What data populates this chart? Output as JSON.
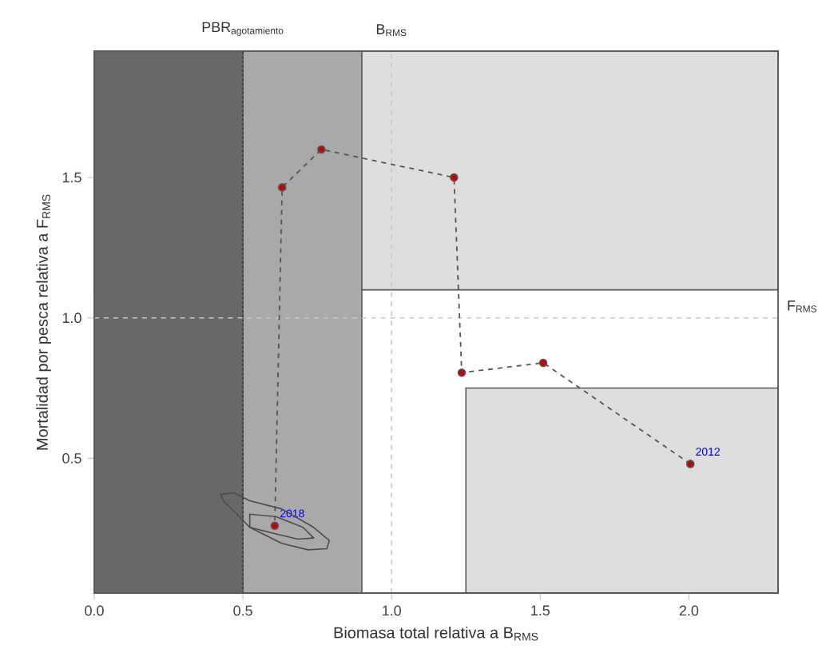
{
  "chart_data": {
    "type": "line",
    "xlabel": "Biomasa total relativa a B$_{RMS}$",
    "ylabel": "Mortalidad por pesca relativa a F$_{RMS}$",
    "xlim": [
      0,
      2.3
    ],
    "ylim": [
      0.02,
      1.95
    ],
    "xticks": [
      {
        "value": 0,
        "label": "0.0"
      },
      {
        "value": 0.5,
        "label": "0.5"
      },
      {
        "value": 1,
        "label": "1.0"
      },
      {
        "value": 1.5,
        "label": "1.5"
      },
      {
        "value": 2,
        "label": "2.0"
      }
    ],
    "yticks": [
      {
        "value": 0.5,
        "label": "0.5"
      },
      {
        "value": 1,
        "label": "1.0"
      },
      {
        "value": 1.5,
        "label": "1.5"
      }
    ],
    "bands": [
      {
        "axis": "y",
        "from": 1.1,
        "to": 1.95,
        "color": "#dedede"
      },
      {
        "axis": "x",
        "from": 0,
        "to": 0.5,
        "color": "#686868"
      },
      {
        "axis": "x",
        "from": 0.5,
        "to": 0.9,
        "color": "#a9a9a9"
      }
    ],
    "ref_lines": [
      {
        "axis": "x",
        "value": 0.5,
        "label": "\\text{PBR}_{\\text{agotamiento}}",
        "color": "#222222",
        "line_style": "dotted"
      },
      {
        "axis": "x",
        "value": 1.0,
        "label": "\\text{B}_{\\text{RMS}}",
        "color": "#c8c8c8",
        "line_style": "dashed"
      },
      {
        "axis": "y",
        "value": 1.0,
        "label": "\\text{F}_{\\text{RMS}}",
        "color": "#c8c8c8",
        "line_style": "dashed"
      }
    ],
    "series": [
      {
        "type": "area",
        "color": "#dedede",
        "x": [
          1.25,
          2.3
        ],
        "values": [
          0.75,
          0.75
        ]
      },
      {
        "color": "#555555",
        "line_style": "dashed",
        "marker": "circle",
        "x": [
          2.005,
          1.51,
          1.236,
          1.21,
          0.764,
          0.632,
          0.607
        ],
        "values": [
          0.48,
          0.84,
          0.805,
          1.5,
          1.6,
          1.465,
          0.26
        ]
      }
    ],
    "annotations": [
      {
        "text": "2012",
        "x": 2.005,
        "y": 0.48
      },
      {
        "text": "2018",
        "x": 0.607,
        "y": 0.26
      }
    ],
    "grid": false
  }
}
